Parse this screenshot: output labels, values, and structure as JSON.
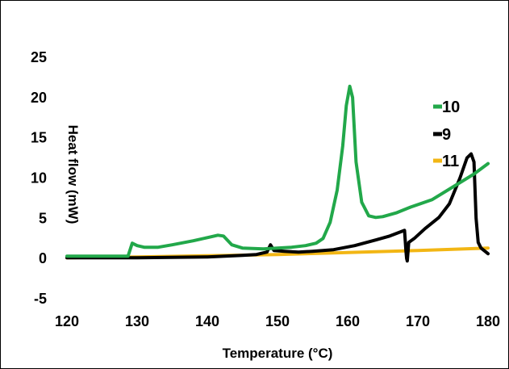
{
  "chart_data": {
    "type": "line",
    "title": "",
    "xlabel": "Temperature (°C)",
    "ylabel": "Heat flow (mW)",
    "xlim": [
      120,
      180
    ],
    "ylim": [
      -5,
      25
    ],
    "x_ticks": [
      120,
      130,
      140,
      150,
      160,
      170,
      180
    ],
    "y_ticks": [
      25,
      20,
      15,
      10,
      5,
      0,
      -5
    ],
    "grid": "none",
    "legend_placement": "right",
    "series": [
      {
        "name": "10",
        "color": "#22a84a",
        "points": [
          [
            120,
            0.3
          ],
          [
            128.7,
            0.3
          ],
          [
            129.3,
            1.9
          ],
          [
            130,
            1.6
          ],
          [
            131,
            1.4
          ],
          [
            133,
            1.4
          ],
          [
            135,
            1.7
          ],
          [
            138,
            2.2
          ],
          [
            140,
            2.6
          ],
          [
            141.5,
            2.9
          ],
          [
            142.3,
            2.8
          ],
          [
            143.5,
            1.7
          ],
          [
            145,
            1.3
          ],
          [
            148,
            1.2
          ],
          [
            150,
            1.3
          ],
          [
            152,
            1.4
          ],
          [
            154,
            1.6
          ],
          [
            155.5,
            1.9
          ],
          [
            156.5,
            2.5
          ],
          [
            157.5,
            4.5
          ],
          [
            158.5,
            8.5
          ],
          [
            159.3,
            14
          ],
          [
            159.8,
            19
          ],
          [
            160.3,
            21.4
          ],
          [
            160.7,
            20
          ],
          [
            161.2,
            12
          ],
          [
            162,
            7
          ],
          [
            163,
            5.3
          ],
          [
            164,
            5.1
          ],
          [
            165,
            5.2
          ],
          [
            167,
            5.7
          ],
          [
            169,
            6.4
          ],
          [
            172,
            7.3
          ],
          [
            175,
            8.9
          ],
          [
            178,
            10.5
          ],
          [
            180,
            11.8
          ]
        ]
      },
      {
        "name": "9",
        "color": "#000000",
        "points": [
          [
            120,
            0.1
          ],
          [
            130,
            0.1
          ],
          [
            140,
            0.2
          ],
          [
            145,
            0.4
          ],
          [
            147,
            0.5
          ],
          [
            148.5,
            0.8
          ],
          [
            149,
            1.7
          ],
          [
            149.5,
            1.0
          ],
          [
            151,
            0.9
          ],
          [
            153,
            0.8
          ],
          [
            155,
            0.9
          ],
          [
            158,
            1.1
          ],
          [
            161,
            1.6
          ],
          [
            164,
            2.3
          ],
          [
            166,
            2.8
          ],
          [
            167.5,
            3.3
          ],
          [
            168.1,
            3.5
          ],
          [
            168.3,
            1.0
          ],
          [
            168.4,
            0.0
          ],
          [
            168.5,
            -0.3
          ],
          [
            168.7,
            2.0
          ],
          [
            169.5,
            2.5
          ],
          [
            171,
            3.7
          ],
          [
            173,
            5.1
          ],
          [
            174.5,
            6.8
          ],
          [
            176,
            10
          ],
          [
            177,
            12.5
          ],
          [
            177.6,
            13
          ],
          [
            178,
            12
          ],
          [
            178.3,
            5
          ],
          [
            178.6,
            2.0
          ],
          [
            179,
            1.3
          ],
          [
            180,
            0.6
          ]
        ]
      },
      {
        "name": "11",
        "color": "#f2b614",
        "points": [
          [
            120,
            0.1
          ],
          [
            130,
            0.2
          ],
          [
            140,
            0.35
          ],
          [
            150,
            0.5
          ],
          [
            160,
            0.75
          ],
          [
            170,
            1.0
          ],
          [
            180,
            1.3
          ]
        ]
      }
    ]
  }
}
